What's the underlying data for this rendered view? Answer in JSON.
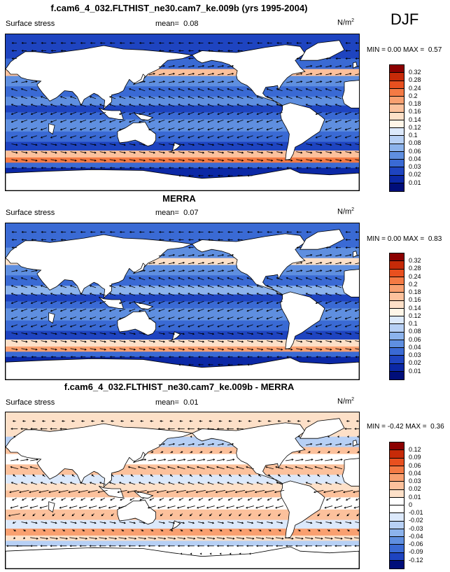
{
  "season": "DJF",
  "panels": [
    {
      "title": "f.cam6_4_032.FLTHIST_ne30.cam7_ke.009b (yrs 1995-2004)",
      "variable": "Surface stress",
      "mean_label": "mean=",
      "mean": "0.08",
      "units": "N/m",
      "units_sup": "2",
      "min_label": "MIN =",
      "min": "0.00",
      "max_label": "MAX =",
      "max": "0.57",
      "levels": [
        "0.32",
        "0.28",
        "0.24",
        "0.2",
        "0.18",
        "0.16",
        "0.14",
        "0.12",
        "0.1",
        "0.08",
        "0.06",
        "0.04",
        "0.03",
        "0.02",
        "0.01"
      ],
      "colors": [
        "#8b0000",
        "#c62a08",
        "#e8501f",
        "#f47a44",
        "#f9a070",
        "#fcc19c",
        "#fde0c8",
        "#fff6e8",
        "#dce9fb",
        "#b7d0f5",
        "#8cb3ec",
        "#5f8fe0",
        "#3a6ad4",
        "#1e44c0",
        "#0b28a6",
        "#000e7a"
      ]
    },
    {
      "title": "MERRA",
      "variable": "Surface stress",
      "mean_label": "mean=",
      "mean": "0.07",
      "units": "N/m",
      "units_sup": "2",
      "min_label": "MIN =",
      "min": "0.00",
      "max_label": "MAX =",
      "max": "0.83",
      "levels": [
        "0.32",
        "0.28",
        "0.24",
        "0.2",
        "0.18",
        "0.16",
        "0.14",
        "0.12",
        "0.1",
        "0.08",
        "0.06",
        "0.04",
        "0.03",
        "0.02",
        "0.01"
      ],
      "colors": [
        "#8b0000",
        "#c62a08",
        "#e8501f",
        "#f47a44",
        "#f9a070",
        "#fcc19c",
        "#fde0c8",
        "#fff6e8",
        "#dce9fb",
        "#b7d0f5",
        "#8cb3ec",
        "#5f8fe0",
        "#3a6ad4",
        "#1e44c0",
        "#0b28a6",
        "#000e7a"
      ]
    },
    {
      "title": "f.cam6_4_032.FLTHIST_ne30.cam7_ke.009b - MERRA",
      "variable": "Surface stress",
      "mean_label": "mean=",
      "mean": "0.01",
      "units": "N/m",
      "units_sup": "2",
      "min_label": "MIN =",
      "min": "-0.42",
      "max_label": "MAX =",
      "max": "0.36",
      "levels": [
        "0.12",
        "0.09",
        "0.06",
        "0.04",
        "0.03",
        "0.02",
        "0.01",
        "0",
        "-0.01",
        "-0.02",
        "-0.03",
        "-0.04",
        "-0.06",
        "-0.09",
        "-0.12"
      ],
      "colors": [
        "#8b0000",
        "#c62a08",
        "#e8501f",
        "#f47a44",
        "#f9a070",
        "#fcc19c",
        "#fde0c8",
        "#ffffff",
        "#ffffff",
        "#dce9fb",
        "#b7d0f5",
        "#8cb3ec",
        "#5f8fe0",
        "#3a6ad4",
        "#1e44c0",
        "#000e7a"
      ]
    }
  ]
}
